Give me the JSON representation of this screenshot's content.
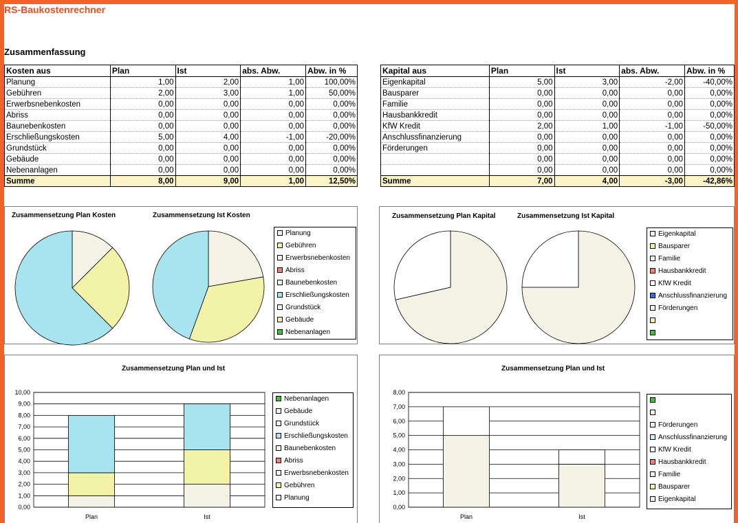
{
  "header": {
    "app_title": "RS-Baukostenrechner",
    "section_title": "Zusammenfassung"
  },
  "colors": {
    "cyan": "#a8e4f0",
    "yellow": "#f2f2a8",
    "cream": "#f5f2e6",
    "salmon": "#f08070",
    "lightcyan": "#c8f0f8",
    "blue": "#3a6cd8",
    "green": "#40c040",
    "border": "#000000"
  },
  "costs_table": {
    "headers": [
      "Kosten aus",
      "Plan",
      "Ist",
      "abs. Abw.",
      "Abw. in %"
    ],
    "rows": [
      [
        "Planung",
        "1,00",
        "2,00",
        "1,00",
        "100,00%"
      ],
      [
        "Gebühren",
        "2,00",
        "3,00",
        "1,00",
        "50,00%"
      ],
      [
        "Erwerbsnebenkosten",
        "0,00",
        "0,00",
        "0,00",
        "0,00%"
      ],
      [
        "Abriss",
        "0,00",
        "0,00",
        "0,00",
        "0,00%"
      ],
      [
        "Baunebenkosten",
        "0,00",
        "0,00",
        "0,00",
        "0,00%"
      ],
      [
        "Erschließungskosten",
        "5,00",
        "4,00",
        "-1,00",
        "-20,00%"
      ],
      [
        "Grundstück",
        "0,00",
        "0,00",
        "0,00",
        "0,00%"
      ],
      [
        "Gebäude",
        "0,00",
        "0,00",
        "0,00",
        "0,00%"
      ],
      [
        "Nebenanlagen",
        "0,00",
        "0,00",
        "0,00",
        "0,00%"
      ]
    ],
    "sum": [
      "Summe",
      "8,00",
      "9,00",
      "1,00",
      "12,50%"
    ]
  },
  "capital_table": {
    "headers": [
      "Kapital aus",
      "Plan",
      "Ist",
      "abs. Abw.",
      "Abw. in %"
    ],
    "rows": [
      [
        "Eigenkapital",
        "5,00",
        "3,00",
        "-2,00",
        "-40,00%"
      ],
      [
        "Bausparer",
        "0,00",
        "0,00",
        "0,00",
        "0,00%"
      ],
      [
        "Familie",
        "0,00",
        "0,00",
        "0,00",
        "0,00%"
      ],
      [
        "Hausbankkredit",
        "0,00",
        "0,00",
        "0,00",
        "0,00%"
      ],
      [
        "KfW Kredit",
        "2,00",
        "1,00",
        "-1,00",
        "-50,00%"
      ],
      [
        "Anschlussfinanzierung",
        "0,00",
        "0,00",
        "0,00",
        "0,00%"
      ],
      [
        "Förderungen",
        "0,00",
        "0,00",
        "0,00",
        "0,00%"
      ],
      [
        "",
        "0,00",
        "0,00",
        "0,00",
        "0,00%"
      ],
      [
        "",
        "0,00",
        "0,00",
        "0,00",
        "0,00%"
      ]
    ],
    "sum": [
      "Summe",
      "7,00",
      "4,00",
      "-3,00",
      "-42,86%"
    ]
  },
  "chart_data": [
    {
      "type": "pie",
      "title": "Zusammensetzung Plan Kosten",
      "labels": [
        "Planung",
        "Gebühren",
        "Erwerbsnebenkosten",
        "Abriss",
        "Baunebenkosten",
        "Erschließungskosten",
        "Grundstück",
        "Gebäude",
        "Nebenanlagen"
      ],
      "values": [
        1,
        2,
        0,
        0,
        0,
        5,
        0,
        0,
        0
      ],
      "colors": [
        "#f5f2e6",
        "#f2f2a8",
        "#f5f2e6",
        "#f08070",
        "#f5f2e6",
        "#a8e4f0",
        "#f5f2e6",
        "#f2f2a8",
        "#40c040"
      ]
    },
    {
      "type": "pie",
      "title": "Zusammensetzung Ist Kosten",
      "labels": [
        "Planung",
        "Gebühren",
        "Erwerbsnebenkosten",
        "Abriss",
        "Baunebenkosten",
        "Erschließungskosten",
        "Grundstück",
        "Gebäude",
        "Nebenanlagen"
      ],
      "values": [
        2,
        3,
        0,
        0,
        0,
        4,
        0,
        0,
        0
      ],
      "colors": [
        "#f5f2e6",
        "#f2f2a8",
        "#f5f2e6",
        "#f08070",
        "#f5f2e6",
        "#a8e4f0",
        "#f5f2e6",
        "#f2f2a8",
        "#40c040"
      ]
    },
    {
      "type": "pie",
      "title": "Zusammensetzung Plan Kapital",
      "labels": [
        "Eigenkapital",
        "Bausparer",
        "Familie",
        "Hausbankkredit",
        "KfW Kredit",
        "Anschlussfinanzierung",
        "Förderungen",
        "",
        ""
      ],
      "values": [
        5,
        0,
        0,
        0,
        2,
        0,
        0,
        0,
        0
      ],
      "colors": [
        "#f5f2e6",
        "#f2f2a8",
        "#f5f2e6",
        "#f08070",
        "#ffffff",
        "#3a6cd8",
        "#f5f2e6",
        "#f2f2a8",
        "#40c040"
      ]
    },
    {
      "type": "pie",
      "title": "Zusammensetzung Ist Kapital",
      "labels": [
        "Eigenkapital",
        "Bausparer",
        "Familie",
        "Hausbankkredit",
        "KfW Kredit",
        "Anschlussfinanzierung",
        "Förderungen",
        "",
        ""
      ],
      "values": [
        3,
        0,
        0,
        0,
        1,
        0,
        0,
        0,
        0
      ],
      "colors": [
        "#f5f2e6",
        "#f2f2a8",
        "#f5f2e6",
        "#f08070",
        "#ffffff",
        "#3a6cd8",
        "#f5f2e6",
        "#f2f2a8",
        "#40c040"
      ]
    },
    {
      "type": "bar",
      "stacked": true,
      "title": "Zusammensetzung Plan und Ist",
      "categories": [
        "Plan",
        "Ist"
      ],
      "ylim": [
        0,
        10
      ],
      "ytick_step": 1,
      "yticks": [
        "0,00",
        "1,00",
        "2,00",
        "3,00",
        "4,00",
        "5,00",
        "6,00",
        "7,00",
        "8,00",
        "9,00",
        "10,00"
      ],
      "series": [
        {
          "name": "Planung",
          "values": [
            1,
            2
          ],
          "color": "#f5f2e6"
        },
        {
          "name": "Gebühren",
          "values": [
            2,
            3
          ],
          "color": "#f2f2a8"
        },
        {
          "name": "Erwerbsnebenkosten",
          "values": [
            0,
            0
          ],
          "color": "#f5f2e6"
        },
        {
          "name": "Abriss",
          "values": [
            0,
            0
          ],
          "color": "#f08070"
        },
        {
          "name": "Baunebenkosten",
          "values": [
            0,
            0
          ],
          "color": "#f5f2e6"
        },
        {
          "name": "Erschließungskosten",
          "values": [
            5,
            4
          ],
          "color": "#a8e4f0"
        },
        {
          "name": "Grundstück",
          "values": [
            0,
            0
          ],
          "color": "#f5f2e6"
        },
        {
          "name": "Gebäude",
          "values": [
            0,
            0
          ],
          "color": "#f5f2e6"
        },
        {
          "name": "Nebenanlagen",
          "values": [
            0,
            0
          ],
          "color": "#40c040"
        }
      ]
    },
    {
      "type": "bar",
      "stacked": true,
      "title": "Zusammensetzung Plan und Ist",
      "categories": [
        "Plan",
        "Ist"
      ],
      "ylim": [
        0,
        8
      ],
      "ytick_step": 1,
      "yticks": [
        "0,00",
        "1,00",
        "2,00",
        "3,00",
        "4,00",
        "5,00",
        "6,00",
        "7,00",
        "8,00"
      ],
      "series": [
        {
          "name": "Eigenkapital",
          "values": [
            5,
            3
          ],
          "color": "#f5f2e6"
        },
        {
          "name": "Bausparer",
          "values": [
            0,
            0
          ],
          "color": "#f2f2a8"
        },
        {
          "name": "Familie",
          "values": [
            0,
            0
          ],
          "color": "#f5f2e6"
        },
        {
          "name": "Hausbankkredit",
          "values": [
            0,
            0
          ],
          "color": "#f08070"
        },
        {
          "name": "KfW Kredit",
          "values": [
            2,
            1
          ],
          "color": "#ffffff"
        },
        {
          "name": "Anschlussfinanzierung",
          "values": [
            0,
            0
          ],
          "color": "#c8f0f8"
        },
        {
          "name": "Förderungen",
          "values": [
            0,
            0
          ],
          "color": "#f5f2e6"
        },
        {
          "name": "",
          "values": [
            0,
            0
          ],
          "color": "#f5f2e6"
        },
        {
          "name": "",
          "values": [
            0,
            0
          ],
          "color": "#40c040"
        }
      ]
    }
  ]
}
